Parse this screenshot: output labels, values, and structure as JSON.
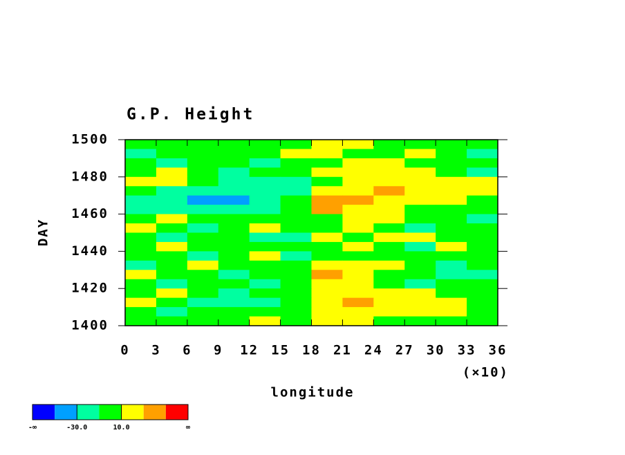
{
  "chart_data": {
    "type": "heatmap",
    "title": "G.P. Height",
    "y_label": "DAY",
    "x_label": "longitude",
    "x_multiplier_label": "(×10)",
    "xlim": [
      0,
      36
    ],
    "xticks": [
      0,
      3,
      6,
      9,
      12,
      15,
      18,
      21,
      24,
      27,
      30,
      33,
      36
    ],
    "ylim": [
      1400,
      1500
    ],
    "yticks": [
      1400,
      1420,
      1440,
      1460,
      1480,
      1500
    ],
    "x": [
      1.5,
      4.5,
      7.5,
      10.5,
      13.5,
      16.5,
      19.5,
      22.5,
      25.5,
      28.5,
      31.5,
      34.5
    ],
    "y": [
      1497.5,
      1492.5,
      1487.5,
      1482.5,
      1477.5,
      1472.5,
      1467.5,
      1462.5,
      1457.5,
      1452.5,
      1447.5,
      1442.5,
      1437.5,
      1432.5,
      1427.5,
      1422.5,
      1417.5,
      1412.5,
      1407.5,
      1402.5
    ],
    "z": [
      [
        0,
        5,
        0,
        -5,
        0,
        0,
        15,
        20,
        5,
        0,
        -5,
        0
      ],
      [
        -15,
        0,
        5,
        -5,
        0,
        15,
        25,
        5,
        0,
        15,
        0,
        -15
      ],
      [
        0,
        -15,
        0,
        0,
        -15,
        0,
        5,
        20,
        15,
        0,
        5,
        -5
      ],
      [
        5,
        15,
        -5,
        -15,
        0,
        -5,
        15,
        20,
        20,
        15,
        0,
        -15
      ],
      [
        15,
        25,
        0,
        -15,
        -15,
        -20,
        0,
        15,
        20,
        25,
        15,
        20
      ],
      [
        0,
        -15,
        -20,
        -25,
        -30,
        -20,
        15,
        20,
        30,
        25,
        20,
        15
      ],
      [
        -20,
        -25,
        -35,
        -40,
        -30,
        -10,
        45,
        30,
        25,
        20,
        15,
        5
      ],
      [
        -15,
        -20,
        -25,
        -20,
        -15,
        0,
        35,
        25,
        15,
        5,
        -10,
        -5
      ],
      [
        0,
        15,
        0,
        -5,
        0,
        0,
        5,
        20,
        10,
        -5,
        0,
        -15
      ],
      [
        15,
        5,
        -15,
        0,
        15,
        0,
        0,
        15,
        5,
        -15,
        0,
        5
      ],
      [
        0,
        -15,
        0,
        5,
        -15,
        -20,
        15,
        0,
        20,
        15,
        5,
        0
      ],
      [
        5,
        15,
        0,
        -5,
        0,
        5,
        0,
        15,
        0,
        -15,
        20,
        0
      ],
      [
        0,
        0,
        -15,
        0,
        15,
        -15,
        5,
        -5,
        0,
        0,
        5,
        -5
      ],
      [
        -15,
        5,
        15,
        0,
        5,
        0,
        25,
        20,
        15,
        0,
        -15,
        0
      ],
      [
        15,
        0,
        -5,
        -15,
        0,
        0,
        35,
        15,
        0,
        5,
        -15,
        -20
      ],
      [
        0,
        -15,
        0,
        5,
        -20,
        0,
        20,
        20,
        0,
        -15,
        0,
        5
      ],
      [
        5,
        15,
        0,
        -15,
        0,
        -5,
        15,
        25,
        25,
        15,
        5,
        0
      ],
      [
        15,
        0,
        -15,
        -20,
        -15,
        0,
        20,
        30,
        25,
        20,
        15,
        0
      ],
      [
        0,
        -15,
        0,
        5,
        0,
        -10,
        15,
        25,
        20,
        20,
        15,
        0
      ],
      [
        5,
        0,
        -5,
        0,
        15,
        0,
        20,
        15,
        0,
        5,
        0,
        0
      ]
    ],
    "colors": [
      "#0000ff",
      "#00a0ff",
      "#00ffa0",
      "#00ff00",
      "#ffff00",
      "#ffa000",
      "#ff0000"
    ],
    "levels": [
      -50,
      -30,
      -10,
      10,
      30,
      50
    ],
    "level_labels": [
      {
        "value": -30,
        "label": "-30.0"
      },
      {
        "value": 10,
        "label": "10.0"
      }
    ],
    "colorbar_min_label": "-∞",
    "colorbar_max_label": "∞"
  }
}
